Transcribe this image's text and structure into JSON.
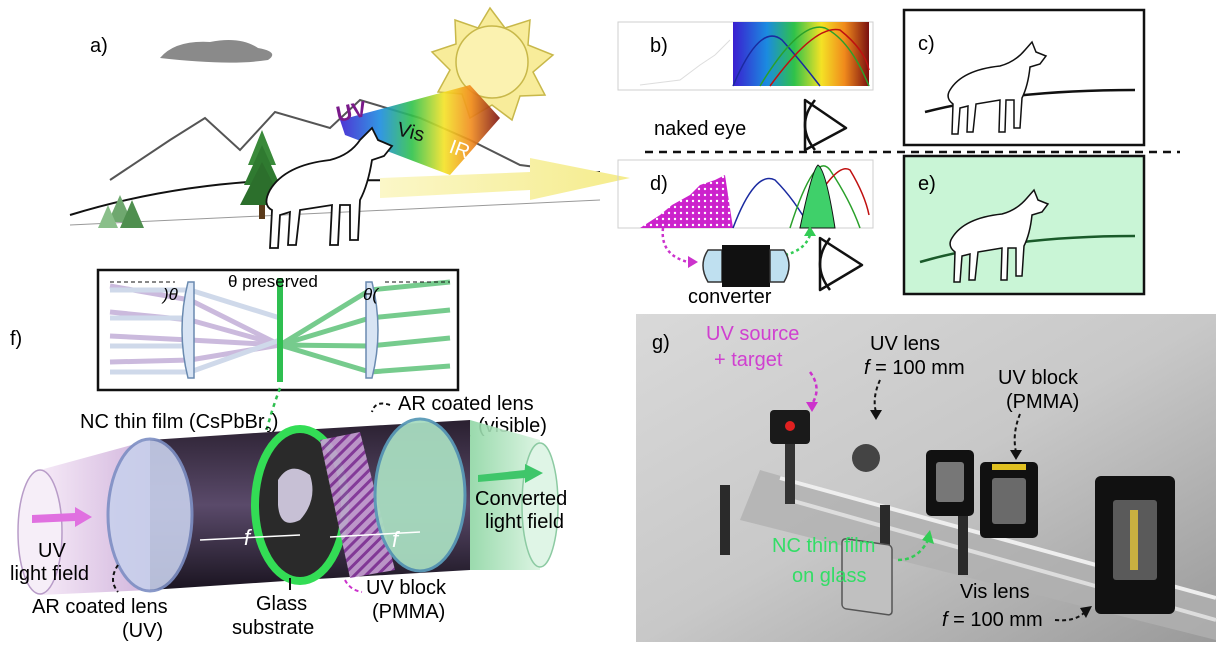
{
  "panels": {
    "a": "a)",
    "b": "b)",
    "c": "c)",
    "d": "d)",
    "e": "e)",
    "f": "f)",
    "g": "g)"
  },
  "panel_a": {
    "uv": "UV",
    "vis": "Vis",
    "ir": "IR"
  },
  "panel_bc": {
    "naked_eye": "naked eye"
  },
  "panel_d": {
    "converter": "converter"
  },
  "panel_f": {
    "theta_preserved": "θ preserved",
    "theta_left": ")θ",
    "theta_right": "θ(",
    "nc_film_prefix": "NC thin film (CsPbBr",
    "nc_film_sub": "3",
    "nc_film_suffix": ")",
    "ar_visible_1": "AR coated lens",
    "ar_visible_2": "(visible)",
    "converted_1": "Converted",
    "converted_2": "light field",
    "uv_field_1": "UV",
    "uv_field_2": "light field",
    "focal": "f",
    "ar_uv_1": "AR coated lens",
    "ar_uv_2": "(UV)",
    "glass_1": "Glass",
    "glass_2": "substrate",
    "uvblock_1": "UV block",
    "uvblock_2": "(PMMA)"
  },
  "panel_g": {
    "uv_source_1": "UV source",
    "uv_source_2": "+ target",
    "uv_lens_1": "UV lens",
    "uv_lens_2_f": "f",
    "uv_lens_2_rest": " = 100 mm",
    "uv_block_1": "UV block",
    "uv_block_2": "(PMMA)",
    "nc_1": "NC thin film",
    "nc_2": "on glass",
    "vis_lens_1": "Vis lens",
    "vis_lens_2_f": "f",
    "vis_lens_2_rest": " = 100 mm"
  },
  "colors": {
    "uv_magenta": "#cc33cc",
    "nc_green": "#33cc55",
    "panel_bg_green": "#c9f5d6",
    "sun_yellow": "#f8ec9a"
  }
}
